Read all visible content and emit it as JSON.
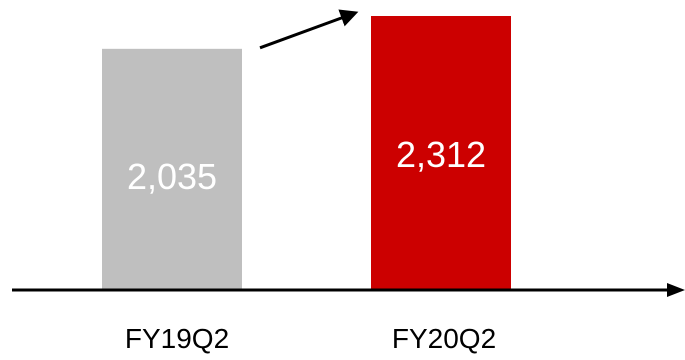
{
  "chart_data": {
    "type": "bar",
    "categories": [
      "FY19Q2",
      "FY20Q2"
    ],
    "values": [
      2035,
      2312
    ],
    "data_labels": [
      "2,035",
      "2,312"
    ],
    "colors": [
      "#bfbfbf",
      "#cc0000"
    ],
    "label_color": "#ffffff",
    "axis_color": "#000000",
    "title": "",
    "xlabel": "",
    "ylabel": "",
    "ylim": [
      0,
      2312
    ],
    "grid": false,
    "legend": "none",
    "annotations": [
      {
        "type": "arrow",
        "from_category": "FY19Q2",
        "to_category": "FY20Q2",
        "direction": "increase"
      }
    ]
  }
}
